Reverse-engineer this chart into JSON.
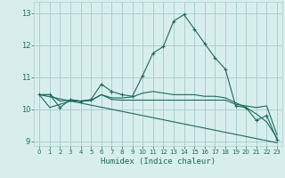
{
  "title": "",
  "xlabel": "Humidex (Indice chaleur)",
  "ylabel": "",
  "bg_color": "#d8eeed",
  "grid_color": "#aacfcf",
  "line_color": "#1a6b5a",
  "xlim": [
    -0.5,
    23.5
  ],
  "ylim": [
    8.85,
    13.35
  ],
  "xticks": [
    0,
    1,
    2,
    3,
    4,
    5,
    6,
    7,
    8,
    9,
    10,
    11,
    12,
    13,
    14,
    15,
    16,
    17,
    18,
    19,
    20,
    21,
    22,
    23
  ],
  "yticks": [
    9,
    10,
    11,
    12,
    13
  ],
  "line1_x": [
    0,
    1,
    2,
    3,
    4,
    5,
    6,
    7,
    8,
    9,
    10,
    11,
    12,
    13,
    14,
    15,
    16,
    17,
    18,
    19,
    20,
    21,
    22,
    23
  ],
  "line1_y": [
    10.45,
    10.45,
    10.05,
    10.3,
    10.25,
    10.3,
    10.78,
    10.55,
    10.45,
    10.4,
    11.05,
    11.75,
    11.95,
    12.75,
    12.95,
    12.5,
    12.05,
    11.6,
    11.25,
    10.1,
    10.05,
    9.65,
    9.8,
    9.05
  ],
  "line2_x": [
    0,
    1,
    2,
    3,
    4,
    5,
    6,
    7,
    8,
    9,
    10,
    11,
    12,
    13,
    14,
    15,
    16,
    17,
    18,
    19,
    20,
    21,
    22,
    23
  ],
  "line2_y": [
    10.45,
    10.05,
    10.15,
    10.25,
    10.25,
    10.27,
    10.45,
    10.35,
    10.35,
    10.38,
    10.5,
    10.55,
    10.5,
    10.45,
    10.45,
    10.45,
    10.4,
    10.4,
    10.35,
    10.2,
    10.05,
    9.85,
    9.6,
    9.1
  ],
  "line3_x": [
    0,
    1,
    2,
    3,
    4,
    5,
    6,
    7,
    8,
    9,
    10,
    11,
    12,
    13,
    14,
    15,
    16,
    17,
    18,
    19,
    20,
    21,
    22,
    23
  ],
  "line3_y": [
    10.45,
    10.45,
    10.25,
    10.28,
    10.25,
    10.28,
    10.45,
    10.3,
    10.28,
    10.28,
    10.28,
    10.28,
    10.28,
    10.28,
    10.28,
    10.28,
    10.28,
    10.28,
    10.28,
    10.15,
    10.1,
    10.05,
    10.1,
    9.2
  ],
  "line4_x": [
    0,
    23
  ],
  "line4_y": [
    10.45,
    8.95
  ]
}
